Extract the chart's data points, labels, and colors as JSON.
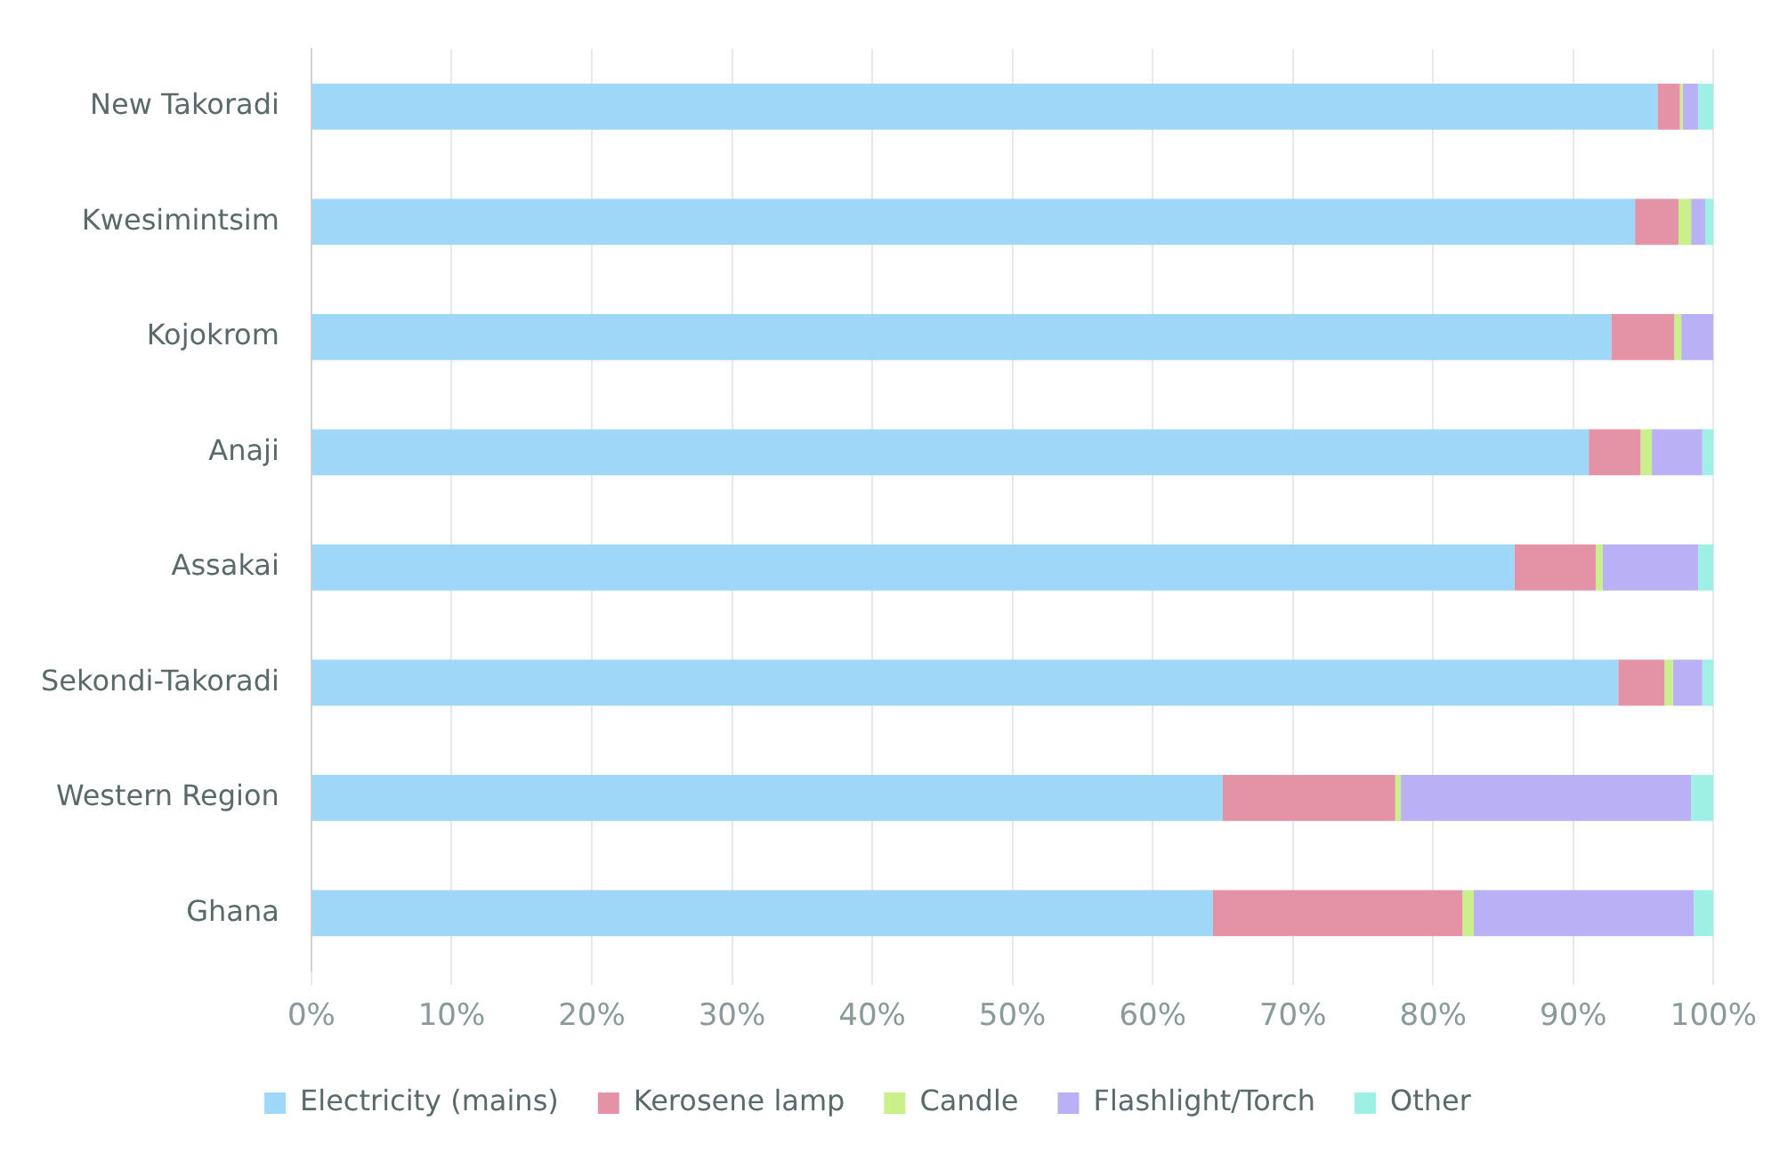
{
  "chart_data": {
    "type": "bar",
    "orientation": "horizontal",
    "stacked": true,
    "categories": [
      "New Takoradi",
      "Kwesimintsim",
      "Kojokrom",
      "Anaji",
      "Assakai",
      "Sekondi-Takoradi",
      "Western Region",
      "Ghana"
    ],
    "series": [
      {
        "name": "Electricity (mains)",
        "color": "#9fd7f9",
        "values": [
          96.0,
          94.4,
          92.7,
          91.1,
          85.8,
          93.2,
          65.0,
          64.3
        ]
      },
      {
        "name": "Kerosene lamp",
        "color": "#e493a6",
        "values": [
          1.6,
          3.1,
          4.5,
          3.7,
          5.8,
          3.3,
          12.3,
          17.8
        ]
      },
      {
        "name": "Candle",
        "color": "#c9f08b",
        "values": [
          0.2,
          0.9,
          0.5,
          0.8,
          0.5,
          0.6,
          0.4,
          0.8
        ]
      },
      {
        "name": "Flashlight/Torch",
        "color": "#b9b0f5",
        "values": [
          1.1,
          1.0,
          2.3,
          3.6,
          6.8,
          2.1,
          20.7,
          15.7
        ]
      },
      {
        "name": "Other",
        "color": "#9ff0e4",
        "values": [
          1.1,
          0.6,
          0,
          0.8,
          1.1,
          0.8,
          1.6,
          1.4
        ]
      }
    ],
    "xlim": [
      0,
      100
    ],
    "xticks": [
      {
        "value": 0,
        "label": "0%"
      },
      {
        "value": 10,
        "label": "10%"
      },
      {
        "value": 20,
        "label": "20%"
      },
      {
        "value": 30,
        "label": "30%"
      },
      {
        "value": 40,
        "label": "40%"
      },
      {
        "value": 50,
        "label": "50%"
      },
      {
        "value": 60,
        "label": "60%"
      },
      {
        "value": 70,
        "label": "70%"
      },
      {
        "value": 80,
        "label": "80%"
      },
      {
        "value": 90,
        "label": "90%"
      },
      {
        "value": 100,
        "label": "100%"
      }
    ],
    "grid": "x",
    "legend": "bottom"
  }
}
